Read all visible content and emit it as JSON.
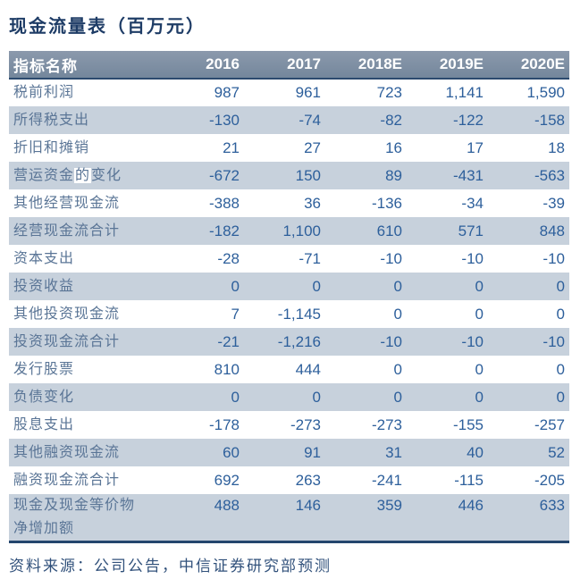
{
  "title": "现金流量表（百万元）",
  "table": {
    "columns": [
      "指标名称",
      "2016",
      "2017",
      "2018E",
      "2019E",
      "2020E"
    ],
    "rows": [
      {
        "label": "税前利润",
        "values": [
          "987",
          "961",
          "723",
          "1,141",
          "1,590"
        ]
      },
      {
        "label": "所得税支出",
        "values": [
          "-130",
          "-74",
          "-82",
          "-122",
          "-158"
        ]
      },
      {
        "label": "折旧和摊销",
        "values": [
          "21",
          "27",
          "16",
          "17",
          "18"
        ]
      },
      {
        "label": "营运资金的变化",
        "highlight": "的",
        "values": [
          "-672",
          "150",
          "89",
          "-431",
          "-563"
        ]
      },
      {
        "label": "其他经营现金流",
        "values": [
          "-388",
          "36",
          "-136",
          "-34",
          "-39"
        ]
      },
      {
        "label": "经营现金流合计",
        "values": [
          "-182",
          "1,100",
          "610",
          "571",
          "848"
        ]
      },
      {
        "label": "资本支出",
        "values": [
          "-28",
          "-71",
          "-10",
          "-10",
          "-10"
        ]
      },
      {
        "label": "投资收益",
        "values": [
          "0",
          "0",
          "0",
          "0",
          "0"
        ]
      },
      {
        "label": "其他投资现金流",
        "values": [
          "7",
          "-1,145",
          "0",
          "0",
          "0"
        ]
      },
      {
        "label": "投资现金流合计",
        "values": [
          "-21",
          "-1,216",
          "-10",
          "-10",
          "-10"
        ]
      },
      {
        "label": "发行股票",
        "values": [
          "810",
          "444",
          "0",
          "0",
          "0"
        ]
      },
      {
        "label": "负债变化",
        "values": [
          "0",
          "0",
          "0",
          "0",
          "0"
        ]
      },
      {
        "label": "股息支出",
        "values": [
          "-178",
          "-273",
          "-273",
          "-155",
          "-257"
        ]
      },
      {
        "label": "其他融资现金流",
        "values": [
          "60",
          "91",
          "31",
          "40",
          "52"
        ]
      },
      {
        "label": "融资现金流合计",
        "values": [
          "692",
          "263",
          "-241",
          "-115",
          "-205"
        ]
      },
      {
        "label": "现金及现金等价物\n净增加额",
        "values": [
          "488",
          "146",
          "359",
          "446",
          "633"
        ]
      }
    ]
  },
  "footer": "资料来源：公司公告，中信证券研究部预测",
  "colors": {
    "title-color": "#1e3c66",
    "header-bg-top": "#8b99ac",
    "header-bg-bottom": "#74879c",
    "header-text": "#ffffff",
    "header-rule": "#2c4a6e",
    "row-shade": "#c7d1dc",
    "label-color": "#5a7596",
    "value-color": "#2d5f9b",
    "table-bottom-rule": "#24466d",
    "footer-color": "#31517b"
  }
}
